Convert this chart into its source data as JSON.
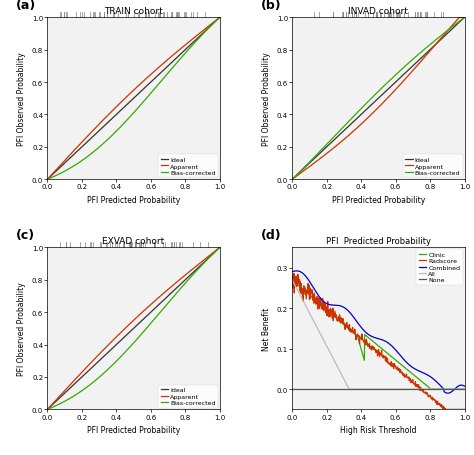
{
  "panel_a_title": "TRAIN cohort",
  "panel_b_title": "INVAD cohort",
  "panel_c_title": "EXVAD cohort",
  "panel_d_title": "PFI  Predicted Probability",
  "xlabel_calib": "PFI Predicted Probability",
  "ylabel_calib": "PFI Observed Probability",
  "xlabel_dca": "High Risk Threshold",
  "ylabel_dca": "Net Benefit",
  "ideal_color": "#333333",
  "apparent_color": "#cc3300",
  "bias_corrected_color": "#33aa00",
  "clinic_color": "#33aa00",
  "radscore_color": "#cc3300",
  "combined_color": "#0000cc",
  "all_color": "#bbbbbb",
  "none_color": "#555555",
  "bg_color": "#f2f2f2",
  "panel_labels": [
    "(a)",
    "(b)",
    "(c)",
    "(d)"
  ]
}
